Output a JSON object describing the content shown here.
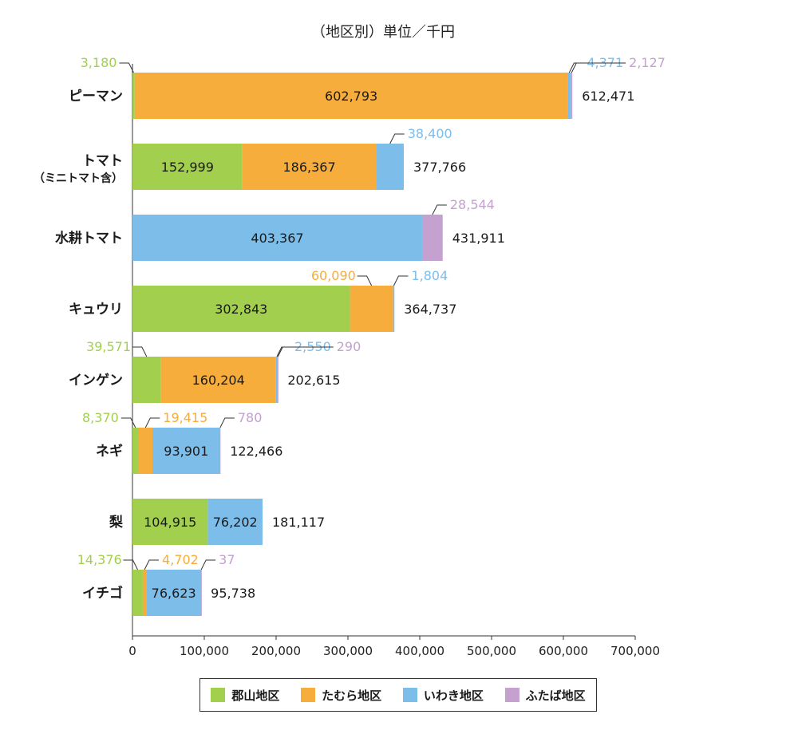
{
  "unit_title": "（地区別）単位／千円",
  "chart_data": {
    "type": "bar",
    "orientation": "horizontal",
    "stacked": true,
    "unit": "千円",
    "categories": [
      "ピーマン",
      "トマト\n（ミニトマト含）",
      "水耕トマト",
      "キュウリ",
      "インゲン",
      "ネギ",
      "梨",
      "イチゴ"
    ],
    "series": [
      {
        "name": "郡山地区",
        "color": "#a3cf4f",
        "values": [
          3180,
          152999,
          0,
          302843,
          39571,
          8370,
          104915,
          14376
        ]
      },
      {
        "name": "たむら地区",
        "color": "#f6ad3c",
        "values": [
          602793,
          186367,
          0,
          60090,
          160204,
          19415,
          0,
          4702
        ]
      },
      {
        "name": "いわき地区",
        "color": "#7dbdea",
        "values": [
          4371,
          38400,
          403367,
          1804,
          2550,
          93901,
          76202,
          76623
        ]
      },
      {
        "name": "ふたば地区",
        "color": "#c4a1cf",
        "values": [
          2127,
          0,
          28544,
          0,
          290,
          780,
          0,
          37
        ]
      }
    ],
    "value_labels": [
      [
        "3,180",
        "602,793",
        "4,371",
        "2,127"
      ],
      [
        "152,999",
        "186,367",
        "38,400",
        ""
      ],
      [
        "",
        "",
        "403,367",
        "28,544"
      ],
      [
        "302,843",
        "60,090",
        "1,804",
        ""
      ],
      [
        "39,571",
        "160,204",
        "2,550",
        "290"
      ],
      [
        "8,370",
        "19,415",
        "93,901",
        "780"
      ],
      [
        "104,915",
        "",
        "76,202",
        ""
      ],
      [
        "14,376",
        "4,702",
        "76,623",
        "37"
      ]
    ],
    "totals": [
      "612,471",
      "377,766",
      "431,911",
      "364,737",
      "202,615",
      "122,466",
      "181,117",
      "95,738"
    ],
    "xlim": [
      0,
      700000
    ],
    "xticks": [
      0,
      100000,
      200000,
      300000,
      400000,
      500000,
      600000,
      700000
    ],
    "xtick_labels": [
      "0",
      "100,000",
      "200,000",
      "300,000",
      "400,000",
      "500,000",
      "600,000",
      "700,000"
    ],
    "grid": false,
    "legend_position": "bottom"
  }
}
